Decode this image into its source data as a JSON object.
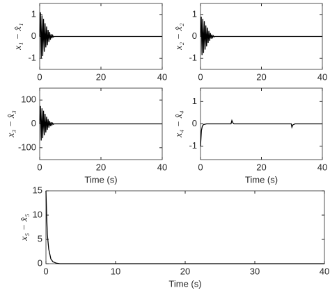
{
  "chart_data": [
    {
      "type": "line",
      "ylabel": "x₁ − x̂₁",
      "xlim": [
        0,
        40
      ],
      "xticks": [
        0,
        20,
        40
      ],
      "ylim": [
        -1.5,
        1.5
      ],
      "yticks": [
        -1,
        0,
        1
      ],
      "color": "#000000",
      "x": [
        0,
        0.25,
        0.5,
        0.75,
        1,
        1.25,
        1.5,
        1.75,
        2,
        2.25,
        2.5,
        2.75,
        3,
        3.25,
        3.5,
        3.75,
        4,
        4.25,
        4.5,
        4.75,
        40
      ],
      "values": [
        0,
        1.1,
        -1.0,
        0.95,
        -0.9,
        0.8,
        -0.7,
        0.6,
        -0.5,
        0.45,
        -0.4,
        0.3,
        -0.25,
        0.2,
        -0.15,
        0.1,
        -0.08,
        0.05,
        -0.03,
        0,
        0
      ]
    },
    {
      "type": "line",
      "ylabel": "x₂ − x̂₂",
      "xlim": [
        0,
        40
      ],
      "xticks": [
        0,
        20,
        40
      ],
      "ylim": [
        -1.5,
        1.5
      ],
      "yticks": [
        -1,
        0,
        1
      ],
      "color": "#000000",
      "x": [
        0,
        0.25,
        0.5,
        0.75,
        1,
        1.25,
        1.5,
        1.75,
        2,
        2.25,
        2.5,
        2.75,
        3,
        3.25,
        3.5,
        3.75,
        4,
        4.25,
        4.5,
        4.75,
        40
      ],
      "values": [
        0,
        0.9,
        -0.85,
        0.8,
        -0.75,
        0.7,
        -0.6,
        0.5,
        -0.45,
        0.4,
        -0.3,
        0.25,
        -0.2,
        0.15,
        -0.1,
        0.08,
        -0.05,
        0.03,
        -0.02,
        0,
        0
      ]
    },
    {
      "type": "line",
      "ylabel": "x₃ − x̂₃",
      "xlabel": "Time (s)",
      "xlim": [
        0,
        40
      ],
      "xticks": [
        0,
        20,
        40
      ],
      "ylim": [
        -150,
        150
      ],
      "yticks": [
        -100,
        0,
        100
      ],
      "color": "#000000",
      "x": [
        0,
        0.25,
        0.5,
        0.75,
        1,
        1.25,
        1.5,
        1.75,
        2,
        2.25,
        2.5,
        2.75,
        3,
        3.25,
        3.5,
        3.75,
        4,
        4.25,
        4.5,
        4.75,
        40
      ],
      "values": [
        0,
        75,
        -70,
        65,
        -60,
        55,
        -48,
        42,
        -36,
        30,
        -25,
        20,
        -16,
        12,
        -9,
        7,
        -5,
        3,
        -2,
        0,
        0
      ]
    },
    {
      "type": "line",
      "ylabel": "x₄ − x̂₄",
      "xlabel": "Time (s)",
      "xlim": [
        0,
        40
      ],
      "xticks": [
        0,
        20,
        40
      ],
      "ylim": [
        -1.6,
        1.6
      ],
      "yticks": [
        -1,
        0,
        1
      ],
      "color": "#000000",
      "x": [
        0,
        0.3,
        0.6,
        1,
        2,
        10,
        10.3,
        10.6,
        11,
        29.8,
        30,
        30.3,
        31,
        40
      ],
      "values": [
        -1,
        -0.3,
        -0.1,
        -0.03,
        0,
        0,
        0.15,
        0.05,
        0,
        0,
        -0.15,
        -0.05,
        0,
        0
      ]
    },
    {
      "type": "line",
      "ylabel": "x₅ − x̂₅",
      "xlabel": "Time (s)",
      "xlim": [
        0,
        40
      ],
      "xticks": [
        0,
        10,
        20,
        30,
        40
      ],
      "ylim": [
        0,
        15
      ],
      "yticks": [
        0,
        5,
        10,
        15
      ],
      "color": "#000000",
      "x": [
        0,
        0.1,
        0.2,
        0.4,
        0.7,
        1,
        1.5,
        2,
        40
      ],
      "values": [
        15,
        10,
        6,
        3,
        1,
        0.4,
        0.1,
        0,
        0
      ]
    }
  ]
}
